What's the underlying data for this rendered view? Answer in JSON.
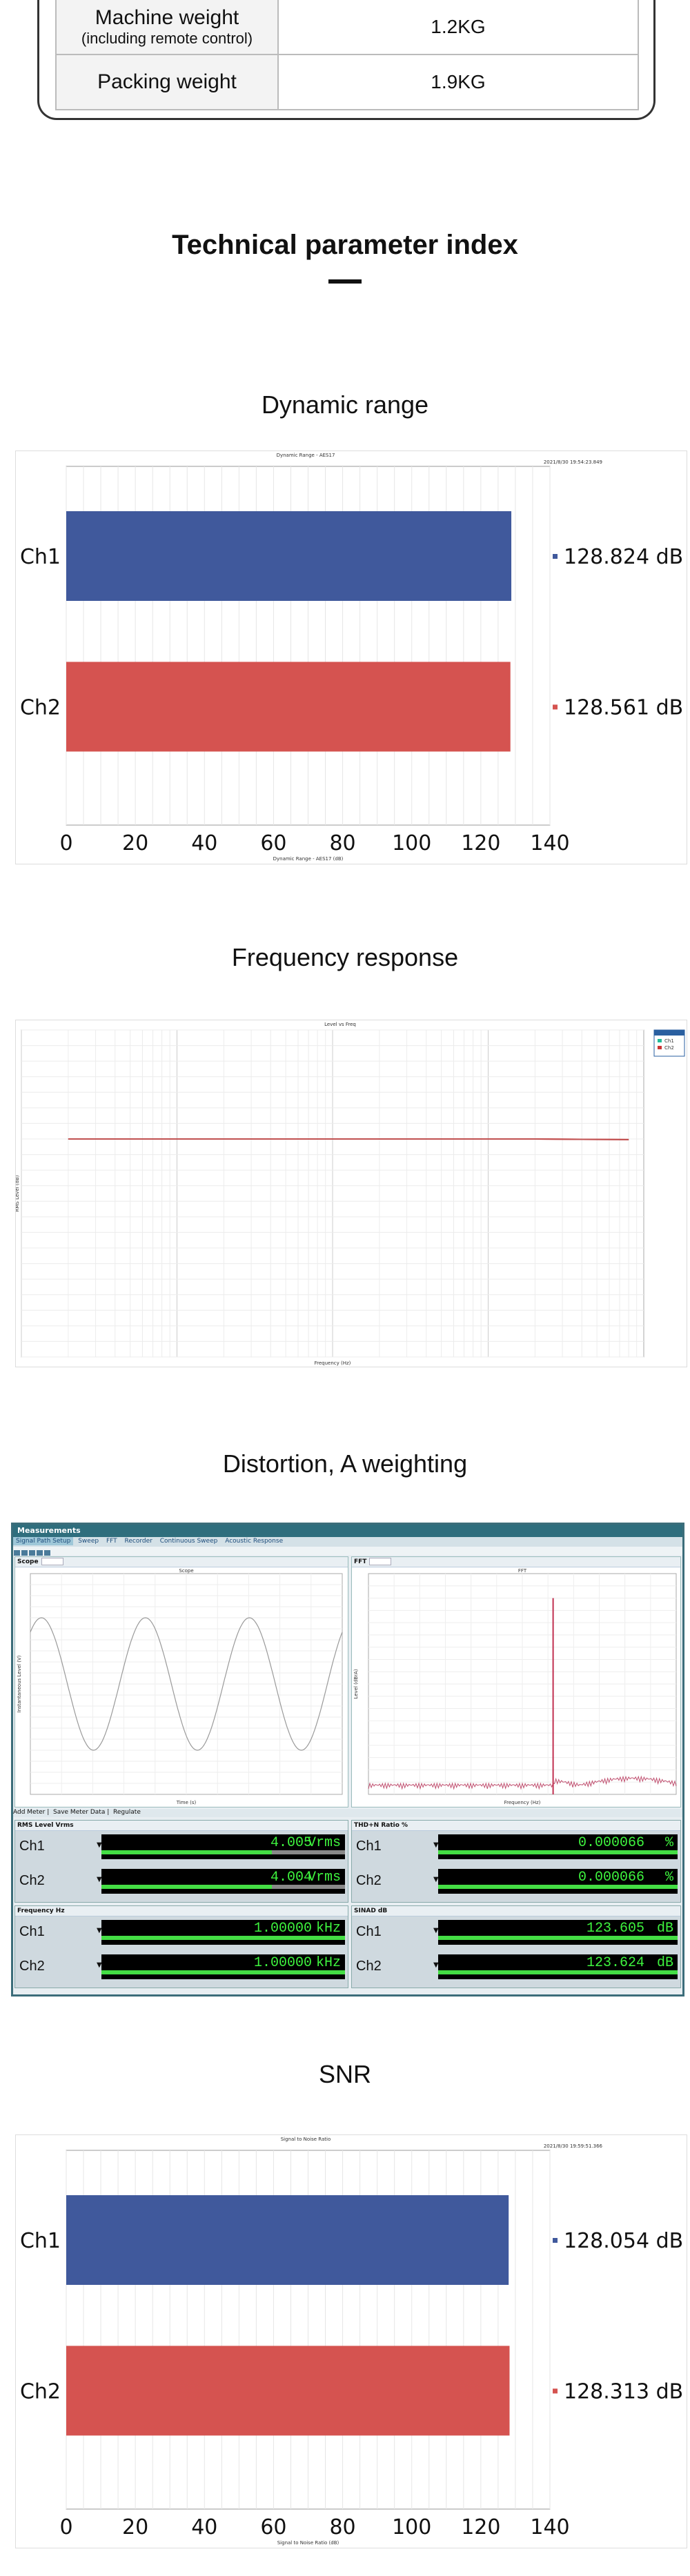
{
  "spec_table": [
    {
      "key": "Machine weight",
      "sub": "(including remote control)",
      "value": "1.2KG"
    },
    {
      "key": "Packing weight",
      "sub": "",
      "value": "1.9KG"
    }
  ],
  "section_title": "Technical parameter index",
  "headings": {
    "dynamic_range": "Dynamic range",
    "frequency_response": "Frequency response",
    "distortion": "Distortion, A weighting",
    "snr": "SNR"
  },
  "colors": {
    "ch1": "#40599c",
    "ch2": "#d55350",
    "fr_line": "#d23a3a",
    "app_accent": "#2f6e7d",
    "meter_green": "#3ef33e"
  },
  "chart_data": [
    {
      "id": "dynamic_range",
      "type": "bar",
      "orientation": "horizontal",
      "title": "Dynamic Range - AES17",
      "timestamp": "2021/8/30 19:54:23.849",
      "xlabel": "Dynamic Range - AES17 (dB)",
      "categories": [
        "Ch1",
        "Ch2"
      ],
      "values": [
        128.824,
        128.561
      ],
      "value_labels": [
        "128.824 dB",
        "128.561 dB"
      ],
      "xlim": [
        0,
        140
      ],
      "xticks": [
        "0",
        "20",
        "40",
        "60",
        "80",
        "100",
        "120",
        "140"
      ],
      "grid": true
    },
    {
      "id": "frequency_response",
      "type": "line",
      "title": "Level vs Freq",
      "xscale": "log",
      "xlim": [
        10,
        100000
      ],
      "ylim": [
        -70,
        35
      ],
      "xlabel": "Frequency (Hz)",
      "ylabel": "RMS Level (dB)",
      "legend": [
        "Ch1",
        "Ch2"
      ],
      "legend_position": "top-right",
      "series": [
        {
          "name": "Ch1",
          "x": [
            20,
            100,
            1000,
            10000,
            20000,
            40000,
            80000
          ],
          "y": [
            0,
            0,
            0,
            0,
            0,
            -0.1,
            -0.2
          ]
        },
        {
          "name": "Ch2",
          "x": [
            20,
            100,
            1000,
            10000,
            20000,
            40000,
            80000
          ],
          "y": [
            0,
            0,
            0,
            0,
            0,
            -0.1,
            -0.2
          ]
        }
      ],
      "grid": true
    },
    {
      "id": "scope",
      "type": "line",
      "title": "Scope",
      "xlabel": "Time (s)",
      "ylabel": "Instantaneous Level (V)",
      "ylim": [
        -10,
        10
      ],
      "xlim": [
        0,
        0.003
      ],
      "series": [
        {
          "name": "Ch1",
          "description": "sine 1 kHz, 6 V peak"
        }
      ],
      "grid": true
    },
    {
      "id": "fft",
      "type": "line",
      "title": "FFT",
      "xscale": "log",
      "xlabel": "Frequency (Hz)",
      "ylabel": "Level (dBrA)",
      "ylim": [
        -160,
        20
      ],
      "peak": {
        "freq": 1000,
        "level": 0
      },
      "grid": true
    },
    {
      "id": "snr",
      "type": "bar",
      "orientation": "horizontal",
      "title": "Signal to Noise Ratio",
      "timestamp": "2021/8/30 19:59:51.366",
      "xlabel": "Signal to Noise Ratio (dB)",
      "categories": [
        "Ch1",
        "Ch2"
      ],
      "values": [
        128.054,
        128.313
      ],
      "value_labels": [
        "128.054 dB",
        "128.313 dB"
      ],
      "xlim": [
        0,
        140
      ],
      "xticks": [
        "0",
        "20",
        "40",
        "60",
        "80",
        "100",
        "120",
        "140"
      ],
      "grid": true
    }
  ],
  "measurements_app": {
    "title": "Measurements",
    "tabs": [
      "Signal Path Setup",
      "Sweep",
      "FFT",
      "Recorder",
      "Continuous Sweep",
      "Acoustic Response"
    ],
    "scope_label": "Scope",
    "fft_label": "FFT",
    "meter_toolbar": [
      "Add Meter",
      "Save Meter Data",
      "Regulate"
    ],
    "meters": [
      {
        "name": "RMS Level",
        "unit_select": "Vrms",
        "rows": [
          {
            "ch": "Ch1",
            "value": "4.005",
            "unit": "Vrms"
          },
          {
            "ch": "Ch2",
            "value": "4.004",
            "unit": "Vrms"
          }
        ]
      },
      {
        "name": "THD+N Ratio",
        "unit_select": "%",
        "rows": [
          {
            "ch": "Ch1",
            "value": "0.000066",
            "unit": "%"
          },
          {
            "ch": "Ch2",
            "value": "0.000066",
            "unit": "%"
          }
        ]
      },
      {
        "name": "Frequency",
        "unit_select": "Hz",
        "rows": [
          {
            "ch": "Ch1",
            "value": "1.00000",
            "unit": "kHz"
          },
          {
            "ch": "Ch2",
            "value": "1.00000",
            "unit": "kHz"
          }
        ]
      },
      {
        "name": "SINAD",
        "unit_select": "dB",
        "rows": [
          {
            "ch": "Ch1",
            "value": "123.605",
            "unit": "dB"
          },
          {
            "ch": "Ch2",
            "value": "123.624",
            "unit": "dB"
          }
        ]
      }
    ]
  }
}
